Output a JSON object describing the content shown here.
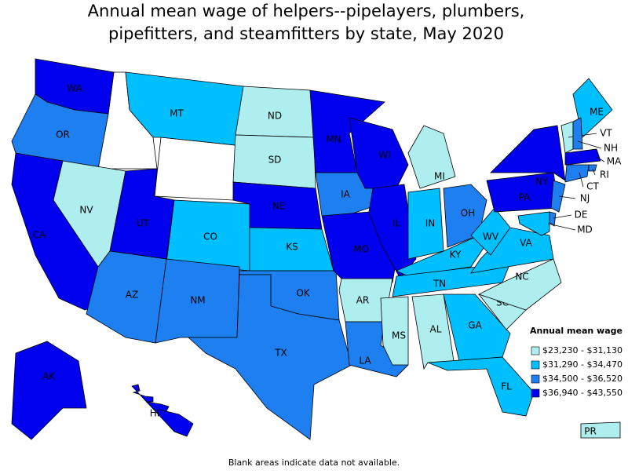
{
  "title_lines": [
    "Annual mean wage of helpers--pipelayers, plumbers,",
    "pipefitters, and steamfitters by state, May 2020"
  ],
  "legend": {
    "title": "Annual mean wage",
    "items": [
      {
        "label": "$23,230 - $31,130",
        "color": "#aeeeee"
      },
      {
        "label": "$31,290 - $34,470",
        "color": "#00bfff"
      },
      {
        "label": "$34,500 - $36,520",
        "color": "#1e80f0"
      },
      {
        "label": "$36,940 - $43,550",
        "color": "#0000ee"
      }
    ]
  },
  "states": [
    {
      "abbr": "WA",
      "class": 3
    },
    {
      "abbr": "OR",
      "class": 2
    },
    {
      "abbr": "CA",
      "class": 3
    },
    {
      "abbr": "NV",
      "class": 0
    },
    {
      "abbr": "MT",
      "class": 1
    },
    {
      "abbr": "UT",
      "class": 3
    },
    {
      "abbr": "CO",
      "class": 1
    },
    {
      "abbr": "AZ",
      "class": 2
    },
    {
      "abbr": "NM",
      "class": 2
    },
    {
      "abbr": "ND",
      "class": 0
    },
    {
      "abbr": "SD",
      "class": 0
    },
    {
      "abbr": "NE",
      "class": 3
    },
    {
      "abbr": "KS",
      "class": 1
    },
    {
      "abbr": "OK",
      "class": 2
    },
    {
      "abbr": "TX",
      "class": 2
    },
    {
      "abbr": "MN",
      "class": 3
    },
    {
      "abbr": "IA",
      "class": 2
    },
    {
      "abbr": "MO",
      "class": 3
    },
    {
      "abbr": "AR",
      "class": 0
    },
    {
      "abbr": "LA",
      "class": 2
    },
    {
      "abbr": "WI",
      "class": 3
    },
    {
      "abbr": "IL",
      "class": 3
    },
    {
      "abbr": "MI",
      "class": 0
    },
    {
      "abbr": "IN",
      "class": 1
    },
    {
      "abbr": "OH",
      "class": 2
    },
    {
      "abbr": "KY",
      "class": 1
    },
    {
      "abbr": "TN",
      "class": 1
    },
    {
      "abbr": "MS",
      "class": 0
    },
    {
      "abbr": "AL",
      "class": 0
    },
    {
      "abbr": "GA",
      "class": 1
    },
    {
      "abbr": "FL",
      "class": 1
    },
    {
      "abbr": "SC",
      "class": 0
    },
    {
      "abbr": "NC",
      "class": 0
    },
    {
      "abbr": "VA",
      "class": 1
    },
    {
      "abbr": "WV",
      "class": 1
    },
    {
      "abbr": "PA",
      "class": 3
    },
    {
      "abbr": "NY",
      "class": 3
    },
    {
      "abbr": "ME",
      "class": 1
    },
    {
      "abbr": "VT",
      "class": 0
    },
    {
      "abbr": "NH",
      "class": 2
    },
    {
      "abbr": "MA",
      "class": 3
    },
    {
      "abbr": "RI",
      "class": 2
    },
    {
      "abbr": "CT",
      "class": 2
    },
    {
      "abbr": "NJ",
      "class": 2
    },
    {
      "abbr": "DE",
      "class": 2
    },
    {
      "abbr": "MD",
      "class": 1
    },
    {
      "abbr": "AK",
      "class": 3
    },
    {
      "abbr": "HI",
      "class": 3
    },
    {
      "abbr": "PR",
      "class": 0
    }
  ],
  "footnote": "Blank areas indicate data not available."
}
